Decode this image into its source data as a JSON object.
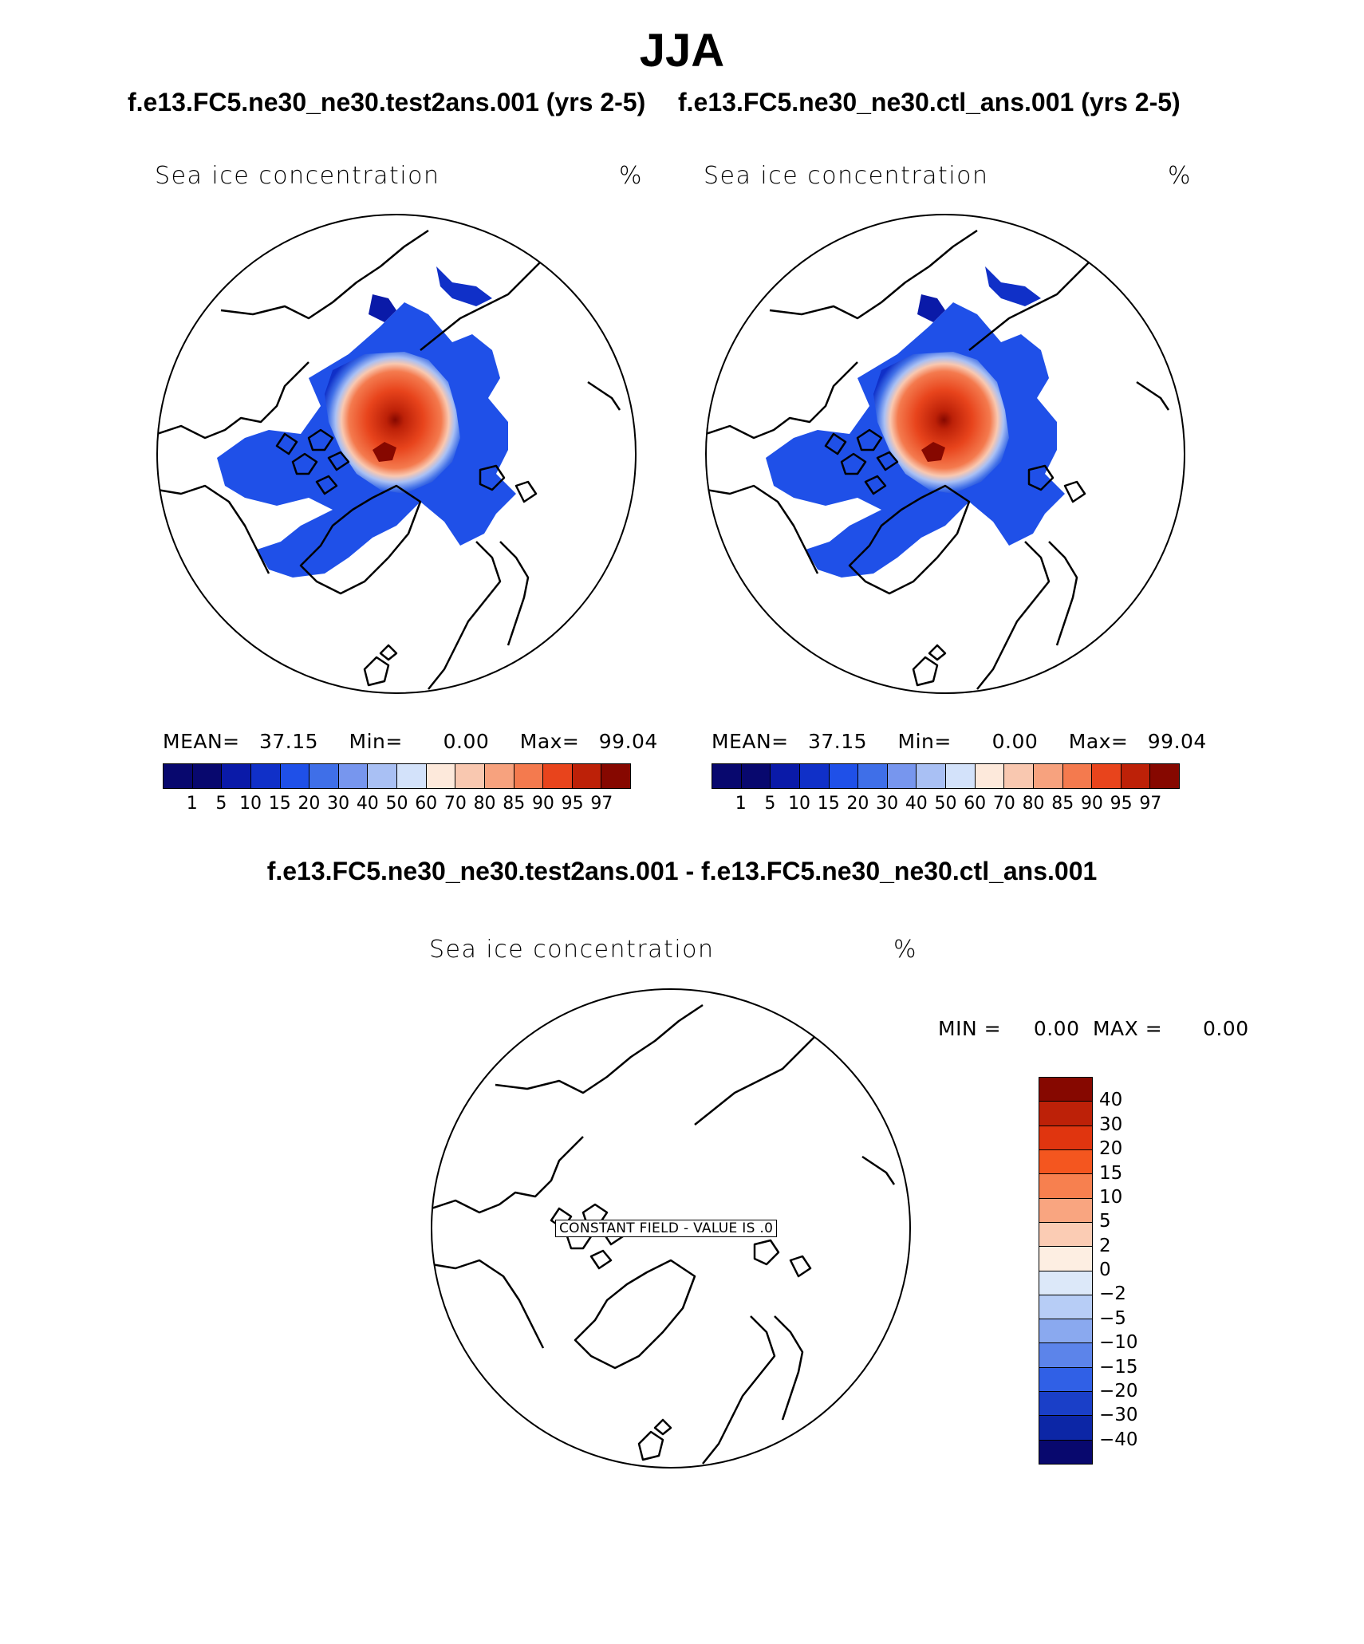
{
  "title": "JJA",
  "cases": {
    "test": "f.e13.FC5.ne30_ne30.test2ans.001 (yrs 2-5)",
    "ctl": "f.e13.FC5.ne30_ne30.ctl_ans.001 (yrs 2-5)",
    "diff": "f.e13.FC5.ne30_ne30.test2ans.001 - f.e13.FC5.ne30_ne30.ctl_ans.001"
  },
  "panels": [
    {
      "variable": "Sea ice concentration",
      "units": "%",
      "mean_label": "MEAN=",
      "mean": "37.15",
      "min_label": "Min=",
      "min": "0.00",
      "max_label": "Max=",
      "max": "99.04"
    },
    {
      "variable": "Sea ice concentration",
      "units": "%",
      "mean_label": "MEAN=",
      "mean": "37.15",
      "min_label": "Min=",
      "min": "0.00",
      "max_label": "Max=",
      "max": "99.04"
    }
  ],
  "diff_panel": {
    "variable": "Sea ice concentration",
    "units": "%",
    "min_label": "MIN =",
    "min": "0.00",
    "max_label": "MAX =",
    "max": "0.00",
    "constant_field_label": "CONSTANT FIELD - VALUE IS .0"
  },
  "colorbar_main": {
    "levels": [
      "1",
      "5",
      "10",
      "15",
      "20",
      "30",
      "40",
      "50",
      "60",
      "70",
      "80",
      "85",
      "90",
      "95",
      "97"
    ],
    "colors": [
      "#08086e",
      "#0a1aa8",
      "#1030c8",
      "#1f50e8",
      "#3f6fe8",
      "#7796ee",
      "#a9c0f4",
      "#d3e2fa",
      "#fde9db",
      "#f9c8b0",
      "#f7a27e",
      "#f47a4e",
      "#e8441c",
      "#bd2108",
      "#860800"
    ]
  },
  "colorbar_diff": {
    "levels": [
      "40",
      "30",
      "20",
      "15",
      "10",
      "5",
      "2",
      "0",
      "-2",
      "-5",
      "-10",
      "-15",
      "-20",
      "-30",
      "-40"
    ],
    "colors": [
      "#860800",
      "#bd2108",
      "#e0350f",
      "#f4561f",
      "#f7804f",
      "#f9a580",
      "#fbccb4",
      "#fdeee2",
      "#dce8f9",
      "#b7cdf6",
      "#8aa9ef",
      "#5c84ea",
      "#3060e6",
      "#1a3fc8",
      "#0c26a6",
      "#08086e"
    ]
  }
}
